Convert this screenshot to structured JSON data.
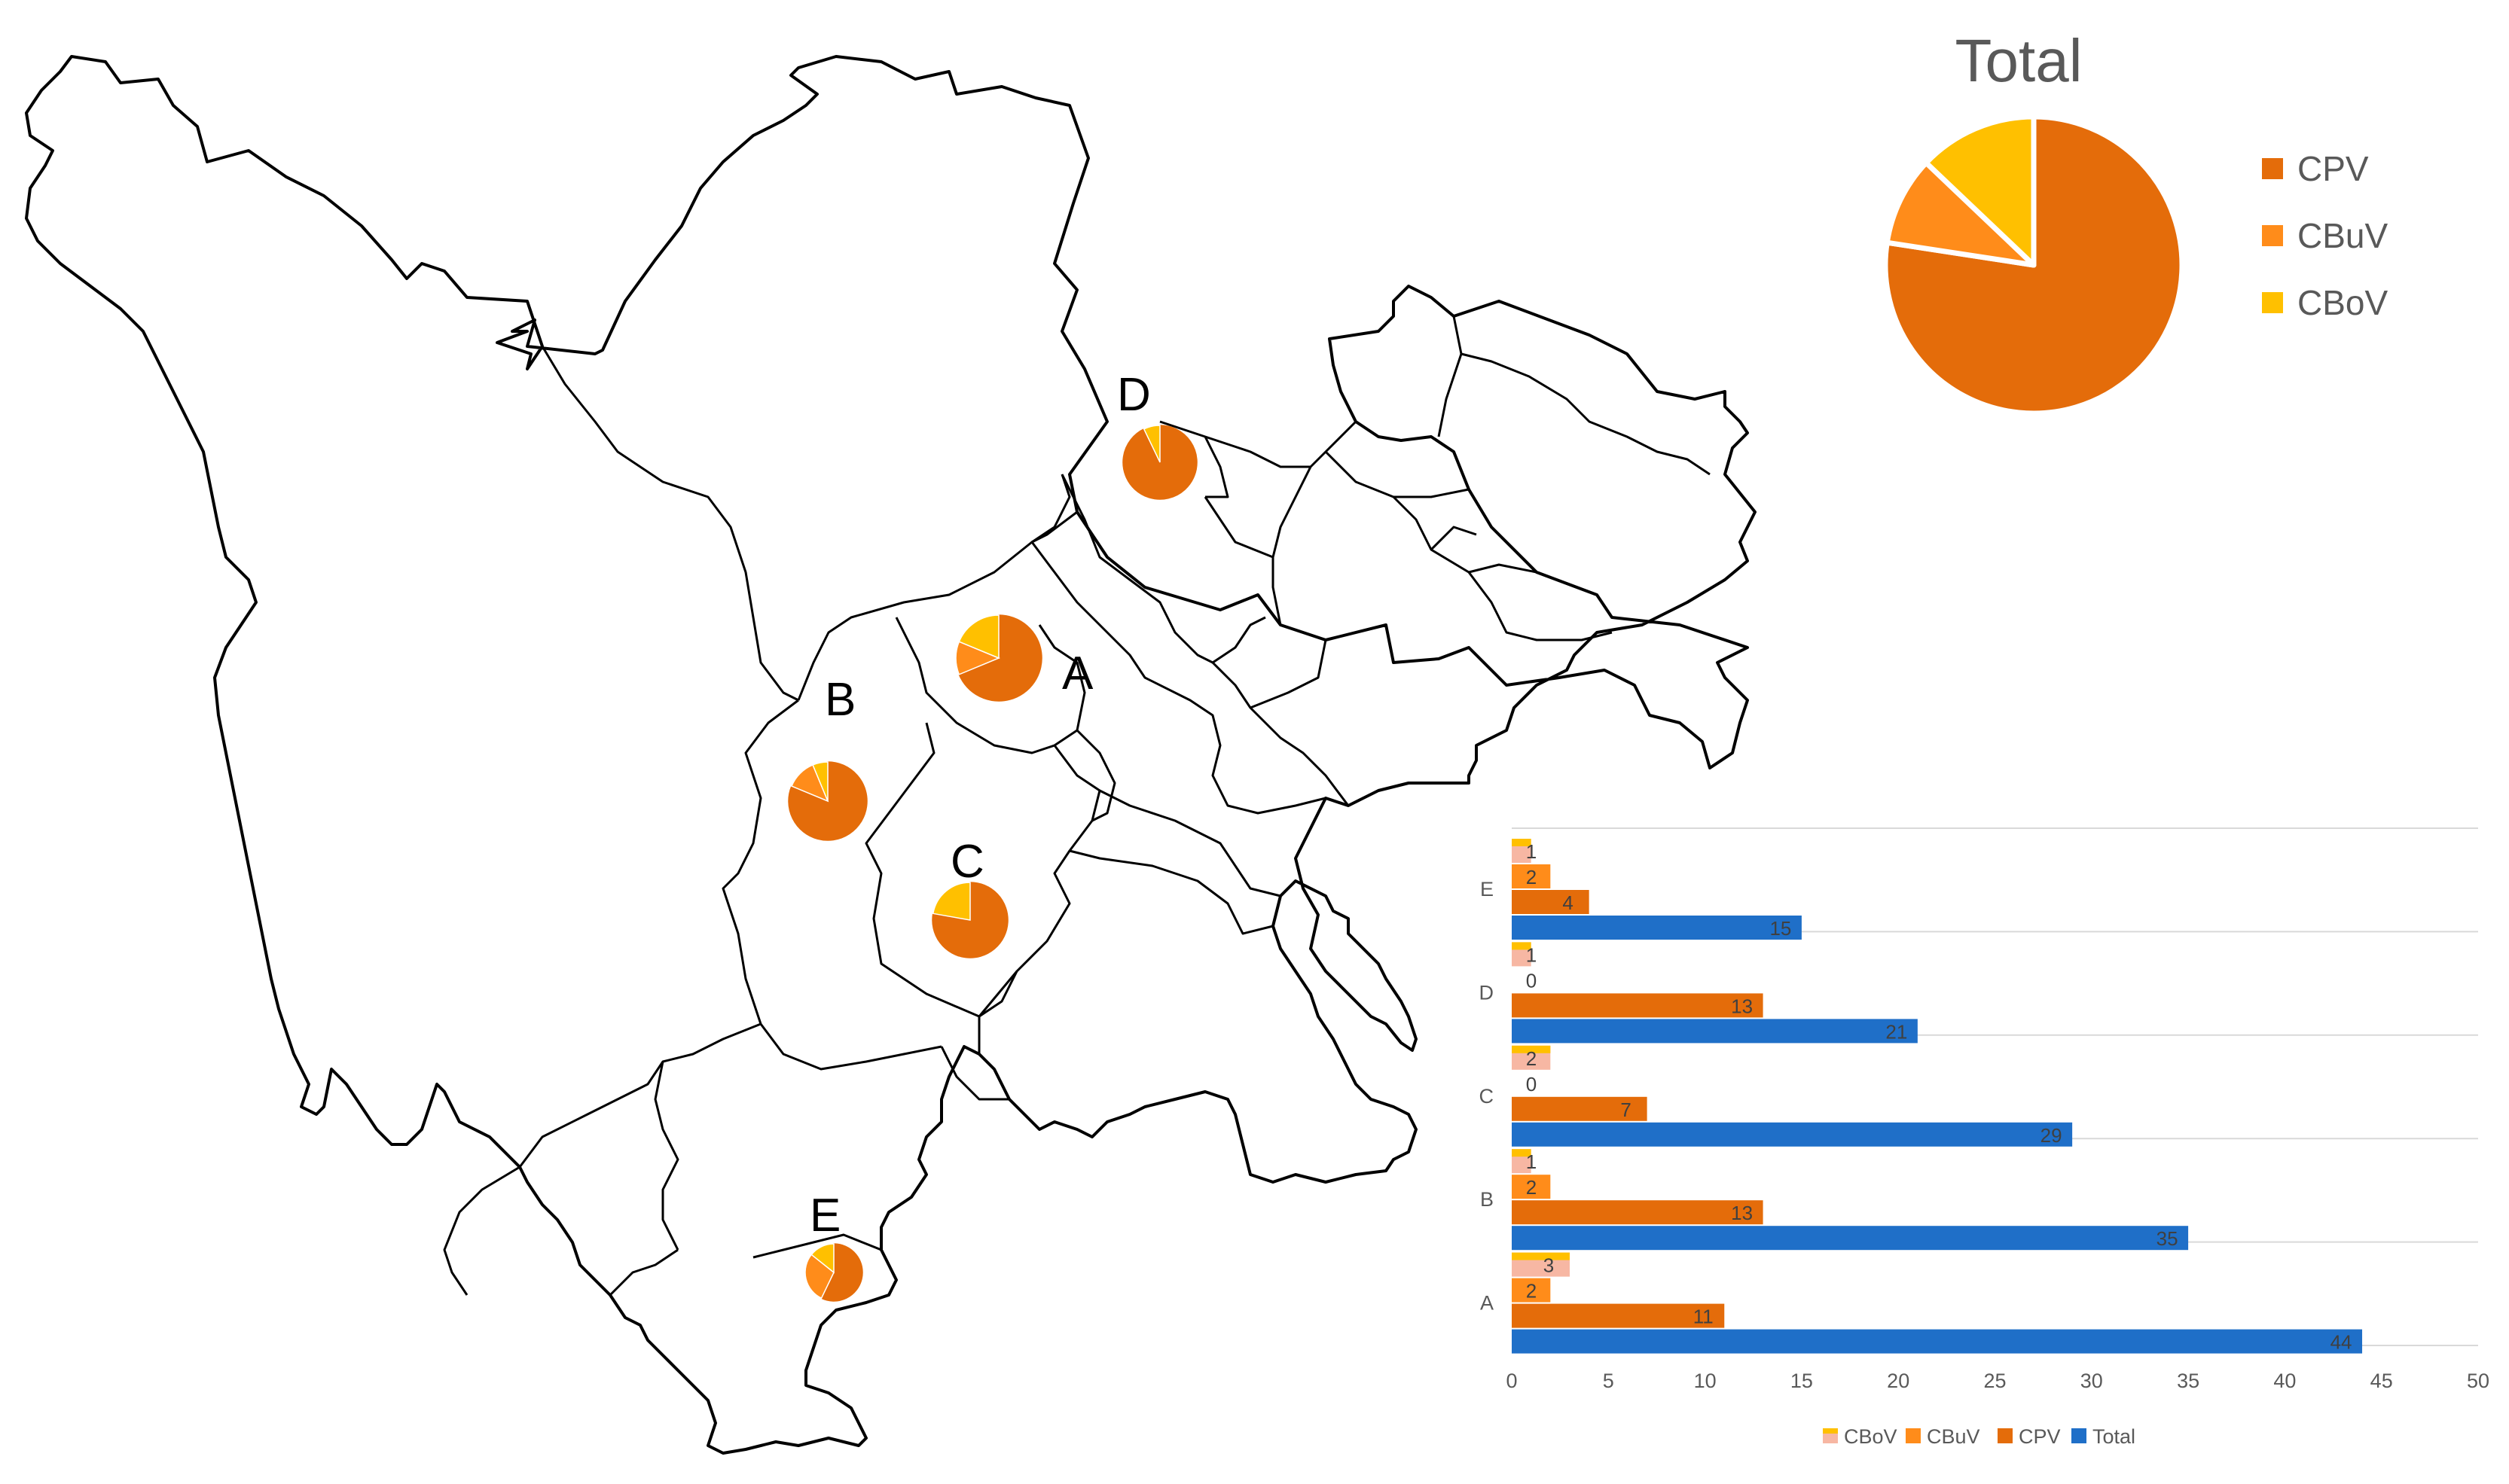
{
  "colors": {
    "CPV": "#e46c0a",
    "CBuV": "#ff8c1a",
    "CBoV": "#ffc000",
    "Total": "#1f6fc8",
    "bar_CBoV": "#f7b7a3"
  },
  "map": {
    "regions": [
      {
        "label": "A",
        "values": {
          "CPV": 11,
          "CBuV": 2,
          "CBoV": 3
        }
      },
      {
        "label": "B",
        "values": {
          "CPV": 13,
          "CBuV": 2,
          "CBoV": 1
        }
      },
      {
        "label": "C",
        "values": {
          "CPV": 7,
          "CBuV": 0,
          "CBoV": 2
        }
      },
      {
        "label": "D",
        "values": {
          "CPV": 13,
          "CBuV": 0,
          "CBoV": 1
        }
      },
      {
        "label": "E",
        "values": {
          "CPV": 4,
          "CBuV": 2,
          "CBoV": 1
        }
      }
    ]
  },
  "chart_data": [
    {
      "type": "pie",
      "title": "Total",
      "labels": [
        "CPV",
        "CBuV",
        "CBoV"
      ],
      "values": [
        48,
        6,
        8
      ],
      "legend_position": "right"
    },
    {
      "type": "bar",
      "orientation": "horizontal",
      "categories": [
        "A",
        "B",
        "C",
        "D",
        "E"
      ],
      "series": [
        {
          "name": "CBoV",
          "values": [
            3,
            1,
            2,
            1,
            1
          ]
        },
        {
          "name": "CBuV",
          "values": [
            2,
            2,
            0,
            0,
            2
          ]
        },
        {
          "name": "CPV",
          "values": [
            11,
            13,
            7,
            13,
            4
          ]
        },
        {
          "name": "Total",
          "values": [
            44,
            35,
            29,
            21,
            15
          ]
        }
      ],
      "xlim": [
        0,
        50
      ],
      "xticks": [
        0,
        5,
        10,
        15,
        20,
        25,
        30,
        35,
        40,
        45,
        50
      ],
      "legend_position": "bottom",
      "grid": true
    }
  ]
}
